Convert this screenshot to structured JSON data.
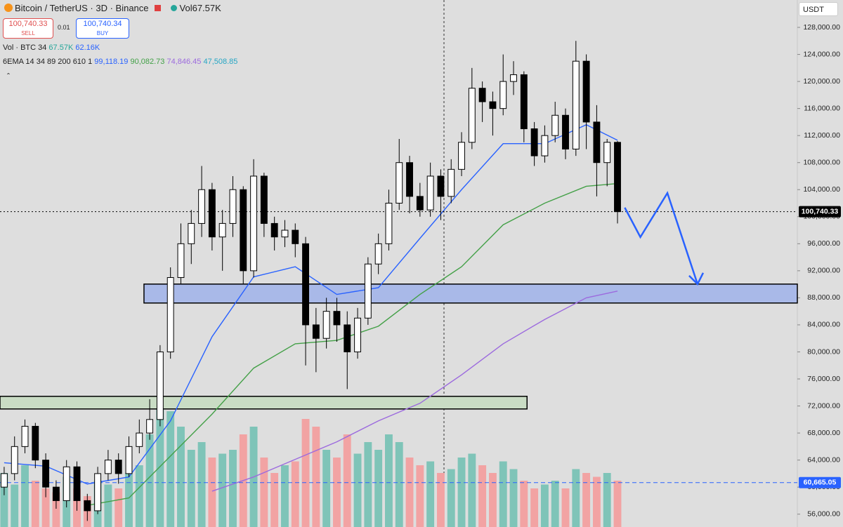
{
  "header": {
    "symbol": "Bitcoin / TetherUS · 3D · Binance",
    "volume_badge": "Vol67.57K",
    "sell_price": "100,740.33",
    "sell_label": "SELL",
    "spread": "0.01",
    "buy_price": "100,740.34",
    "buy_label": "BUY",
    "vol_label": "Vol · BTC 34",
    "vol_values": [
      "67.57K",
      "62.16K"
    ],
    "ema_label": "6EMA 14 34 89 200 610 1",
    "ema_values": [
      "99,118.19",
      "90,082.73",
      "74,846.45",
      "47,508.85"
    ],
    "currency": "USDT"
  },
  "chart_data": {
    "type": "candlestick",
    "xlim": [
      -0.4,
      76.3
    ],
    "ylim": [
      54100,
      132050
    ],
    "vlim": [
      0,
      300
    ],
    "grid": false,
    "up_color": "#ffffff",
    "down_color": "#000000",
    "vol_up_color": "#7fc4b8",
    "vol_down_color": "#f2a3a3",
    "candles": [
      [
        60000,
        63000,
        58800,
        62000
      ],
      [
        62000,
        67500,
        61000,
        66000
      ],
      [
        66000,
        70000,
        65000,
        69000
      ],
      [
        69000,
        69500,
        62800,
        64000
      ],
      [
        64000,
        65000,
        58500,
        60000
      ],
      [
        60000,
        61000,
        56800,
        58000
      ],
      [
        58000,
        64000,
        57000,
        63000
      ],
      [
        63000,
        63800,
        56500,
        58000
      ],
      [
        58000,
        59000,
        55000,
        56500
      ],
      [
        56500,
        63000,
        56000,
        62000
      ],
      [
        62000,
        65500,
        61000,
        64000
      ],
      [
        64000,
        65000,
        60500,
        62000
      ],
      [
        62000,
        67500,
        61500,
        66000
      ],
      [
        66000,
        70000,
        65000,
        68000
      ],
      [
        68000,
        73000,
        67000,
        70000
      ],
      [
        70000,
        81000,
        69000,
        80000
      ],
      [
        80000,
        92500,
        79000,
        91000
      ],
      [
        91000,
        99000,
        90000,
        96000
      ],
      [
        96000,
        101000,
        93000,
        99000
      ],
      [
        99000,
        107500,
        97000,
        104000
      ],
      [
        104000,
        105000,
        95000,
        97000
      ],
      [
        97000,
        101000,
        92000,
        99000
      ],
      [
        99000,
        106000,
        97000,
        104000
      ],
      [
        104000,
        104500,
        90000,
        92000
      ],
      [
        92000,
        108500,
        91000,
        106000
      ],
      [
        106000,
        106500,
        97000,
        99000
      ],
      [
        99000,
        100000,
        95000,
        97000
      ],
      [
        97000,
        99500,
        95500,
        98000
      ],
      [
        98000,
        99000,
        94000,
        96000
      ],
      [
        96000,
        97000,
        78000,
        84000
      ],
      [
        84000,
        86500,
        77000,
        82000
      ],
      [
        82000,
        88000,
        80500,
        86000
      ],
      [
        86000,
        88000,
        81500,
        84000
      ],
      [
        84000,
        86000,
        74500,
        80000
      ],
      [
        80000,
        86500,
        79000,
        85000
      ],
      [
        85000,
        94000,
        84000,
        93000
      ],
      [
        93000,
        97500,
        91500,
        96000
      ],
      [
        96000,
        104000,
        95000,
        102000
      ],
      [
        102000,
        111500,
        101000,
        108000
      ],
      [
        108000,
        109000,
        100500,
        103000
      ],
      [
        103000,
        105000,
        100000,
        101000
      ],
      [
        101000,
        108000,
        100000,
        106000
      ],
      [
        106000,
        107000,
        99500,
        103000
      ],
      [
        103000,
        108500,
        102000,
        107000
      ],
      [
        107000,
        112500,
        106000,
        111000
      ],
      [
        111000,
        122000,
        110000,
        119000
      ],
      [
        119000,
        120000,
        114000,
        117000
      ],
      [
        117000,
        118500,
        112000,
        116000
      ],
      [
        116000,
        124000,
        115000,
        120000
      ],
      [
        120000,
        123000,
        118000,
        121000
      ],
      [
        121000,
        121500,
        111000,
        113000
      ],
      [
        113000,
        114000,
        107500,
        109000
      ],
      [
        109000,
        113500,
        108000,
        112000
      ],
      [
        112000,
        117000,
        111000,
        115000
      ],
      [
        115000,
        116000,
        108500,
        110000
      ],
      [
        110000,
        126000,
        109000,
        123000
      ],
      [
        123000,
        124000,
        110000,
        114000
      ],
      [
        114000,
        116500,
        103000,
        108000
      ],
      [
        108000,
        111500,
        104500,
        111000
      ],
      [
        111000,
        111200,
        99000,
        100740.33
      ]
    ],
    "volumes": [
      70,
      55,
      80,
      60,
      50,
      45,
      65,
      50,
      40,
      60,
      55,
      50,
      70,
      80,
      120,
      170,
      150,
      130,
      100,
      110,
      90,
      95,
      100,
      120,
      130,
      90,
      70,
      80,
      85,
      140,
      130,
      100,
      90,
      120,
      95,
      110,
      100,
      120,
      110,
      90,
      80,
      85,
      70,
      75,
      90,
      95,
      80,
      70,
      85,
      75,
      60,
      50,
      55,
      60,
      50,
      75,
      70,
      65,
      70,
      60
    ],
    "ema_x": [
      0,
      4,
      8,
      12,
      16,
      20,
      24,
      28,
      32,
      36,
      40,
      44,
      48,
      52,
      56,
      59
    ],
    "emas": [
      {
        "color": "#2962ff",
        "values": [
          63600,
          63100,
          60460,
          61500,
          69800,
          82250,
          91100,
          92600,
          88500,
          89500,
          96800,
          104000,
          110800,
          110800,
          113600,
          111300
        ]
      },
      {
        "color": "#43a047",
        "values": [
          null,
          null,
          57300,
          58400,
          64600,
          70800,
          77600,
          81200,
          81700,
          83800,
          88500,
          92600,
          98800,
          102000,
          104500,
          104900
        ]
      },
      {
        "color": "#9c6ade",
        "values": [
          null,
          null,
          null,
          null,
          null,
          59400,
          61500,
          64100,
          66700,
          69800,
          72400,
          76600,
          81200,
          84800,
          88000,
          89000
        ]
      }
    ],
    "zones": [
      {
        "x": [
          13.45,
          76.3
        ],
        "y": [
          90030,
          87230
        ],
        "color": "#a9b9e8"
      },
      {
        "x": [
          -0.4,
          50.3
        ],
        "y": [
          73430,
          71560
        ],
        "color": "#c9dcc4"
      }
    ],
    "arrow": {
      "color": "#2962ff",
      "x": [
        59.7,
        61.2,
        63.8,
        66.7
      ],
      "y": [
        101340,
        96980,
        103500,
        90030
      ]
    },
    "price_lines": [
      {
        "value": 100740.33,
        "label": "100,740.33",
        "color": "#000000",
        "dash": "2,3"
      },
      {
        "value": 60665.05,
        "label": "60,665.05",
        "color": "#2962ff",
        "dash": "6,4"
      }
    ],
    "yticks": [
      {
        "value": 56000,
        "label": "56,000.00"
      },
      {
        "value": 60000,
        "label": "60,000.00"
      },
      {
        "value": 64000,
        "label": "64,000.00"
      },
      {
        "value": 68000,
        "label": "68,000.00"
      },
      {
        "value": 72000,
        "label": "72,000.00"
      },
      {
        "value": 76000,
        "label": "76,000.00"
      },
      {
        "value": 80000,
        "label": "80,000.00"
      },
      {
        "value": 84000,
        "label": "84,000.00"
      },
      {
        "value": 88000,
        "label": "88,000.00"
      },
      {
        "value": 92000,
        "label": "92,000.00"
      },
      {
        "value": 96000,
        "label": "96,000.00"
      },
      {
        "value": 100000,
        "label": "100,000.00"
      },
      {
        "value": 104000,
        "label": "104,000.00"
      },
      {
        "value": 108000,
        "label": "108,000.00"
      },
      {
        "value": 112000,
        "label": "112,000.00"
      },
      {
        "value": 116000,
        "label": "116,000.00"
      },
      {
        "value": 120000,
        "label": "120,000.00"
      },
      {
        "value": 124000,
        "label": "124,000.00"
      },
      {
        "value": 128000,
        "label": "128,000.00"
      }
    ]
  }
}
